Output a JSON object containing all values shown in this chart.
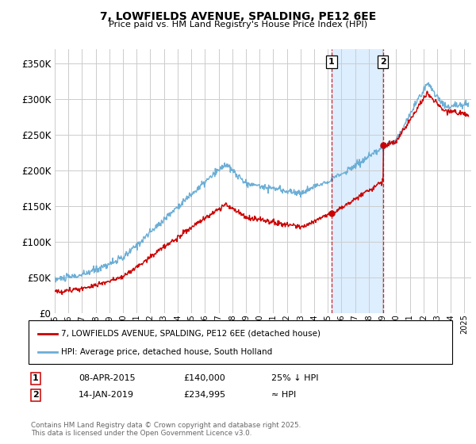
{
  "title": "7, LOWFIELDS AVENUE, SPALDING, PE12 6EE",
  "subtitle": "Price paid vs. HM Land Registry's House Price Index (HPI)",
  "ytick_values": [
    0,
    50000,
    100000,
    150000,
    200000,
    250000,
    300000,
    350000
  ],
  "ylim": [
    0,
    370000
  ],
  "xlim_start": 1995.0,
  "xlim_end": 2025.5,
  "marker1_x": 2015.27,
  "marker1_y": 140000,
  "marker2_x": 2019.04,
  "marker2_y": 234995,
  "label1": "1",
  "label2": "2",
  "annotation1_date": "08-APR-2015",
  "annotation1_price": "£140,000",
  "annotation1_note": "25% ↓ HPI",
  "annotation2_date": "14-JAN-2019",
  "annotation2_price": "£234,995",
  "annotation2_note": "≈ HPI",
  "legend1_label": "7, LOWFIELDS AVENUE, SPALDING, PE12 6EE (detached house)",
  "legend2_label": "HPI: Average price, detached house, South Holland",
  "footer": "Contains HM Land Registry data © Crown copyright and database right 2025.\nThis data is licensed under the Open Government Licence v3.0.",
  "hpi_color": "#6baed6",
  "sale_color": "#cc0000",
  "shade_color": "#ddeeff",
  "vline_color": "#cc0000",
  "background_color": "#ffffff",
  "grid_color": "#cccccc"
}
